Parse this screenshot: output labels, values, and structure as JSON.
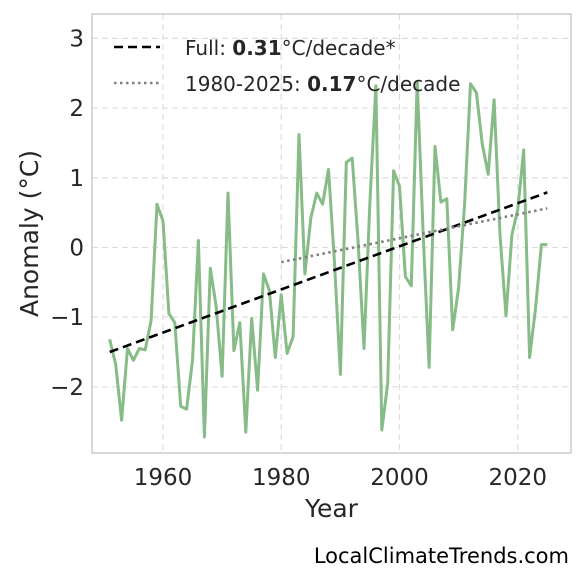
{
  "chart_data": {
    "type": "line",
    "xlabel": "Year",
    "ylabel": "Anomaly (°C)",
    "xlim": [
      1948,
      2029
    ],
    "ylim": [
      -2.95,
      3.35
    ],
    "xticks": [
      1960,
      1980,
      2000,
      2020
    ],
    "xtick_labels": [
      "1960",
      "1980",
      "2000",
      "2020"
    ],
    "yticks": [
      -2,
      -1,
      0,
      1,
      2,
      3
    ],
    "ytick_labels": [
      "−2",
      "−1",
      "0",
      "1",
      "2",
      "3"
    ],
    "grid": true,
    "legend_position": "upper-left",
    "colors": {
      "anomaly": "#87bb87",
      "trend_full": "#000000",
      "trend_recent": "#808080",
      "grid": "#dddddd",
      "frame": "#cccccc"
    },
    "series": [
      {
        "style": "solid",
        "x": [
          1951,
          1952,
          1953,
          1954,
          1955,
          1956,
          1957,
          1958,
          1959,
          1960,
          1961,
          1962,
          1963,
          1964,
          1965,
          1966,
          1967,
          1968,
          1969,
          1970,
          1971,
          1972,
          1973,
          1974,
          1975,
          1976,
          1977,
          1978,
          1979,
          1980,
          1981,
          1982,
          1983,
          1984,
          1985,
          1986,
          1987,
          1988,
          1989,
          1990,
          1991,
          1992,
          1993,
          1994,
          1995,
          1996,
          1997,
          1998,
          1999,
          2000,
          2001,
          2002,
          2003,
          2004,
          2005,
          2006,
          2007,
          2008,
          2009,
          2010,
          2011,
          2012,
          2013,
          2014,
          2015,
          2016,
          2017,
          2018,
          2019,
          2020,
          2021,
          2022,
          2023,
          2024,
          2025
        ],
        "values": [
          -1.32,
          -1.68,
          -2.48,
          -1.45,
          -1.62,
          -1.45,
          -1.47,
          -1.05,
          0.62,
          0.38,
          -0.95,
          -1.08,
          -2.28,
          -2.32,
          -1.62,
          0.1,
          -2.72,
          -0.3,
          -0.85,
          -1.85,
          0.78,
          -1.48,
          -1.08,
          -2.65,
          -1.02,
          -2.05,
          -0.38,
          -0.62,
          -1.58,
          -0.68,
          -1.52,
          -1.28,
          1.62,
          -0.38,
          0.42,
          0.78,
          0.62,
          1.12,
          -0.22,
          -1.82,
          1.22,
          1.28,
          0.08,
          -1.45,
          0.65,
          2.32,
          -2.62,
          -1.95,
          1.1,
          0.88,
          -0.42,
          -0.55,
          2.38,
          0.18,
          -1.72,
          1.45,
          0.65,
          0.7,
          -1.18,
          -0.58,
          0.62,
          2.35,
          2.22,
          1.48,
          1.05,
          2.12,
          0.18,
          -0.98,
          0.18,
          0.55,
          1.4,
          -1.58,
          -0.88,
          0.04,
          0.04
        ]
      },
      {
        "name": "Full: 0.31°C/decade*",
        "style": "dashed",
        "x": [
          1951,
          2025
        ],
        "values": [
          -1.5,
          0.79
        ]
      },
      {
        "name": "1980-2025: 0.17°C/decade",
        "style": "dotted",
        "x": [
          1980,
          2025
        ],
        "values": [
          -0.21,
          0.56
        ]
      }
    ],
    "legend": [
      {
        "prefix": "Full: ",
        "bold": "0.31",
        "suffix": "°C/decade*",
        "style": "dashed"
      },
      {
        "prefix": "1980-2025: ",
        "bold": "0.17",
        "suffix": "°C/decade",
        "style": "dotted"
      }
    ]
  },
  "source": "LocalClimateTrends.com"
}
